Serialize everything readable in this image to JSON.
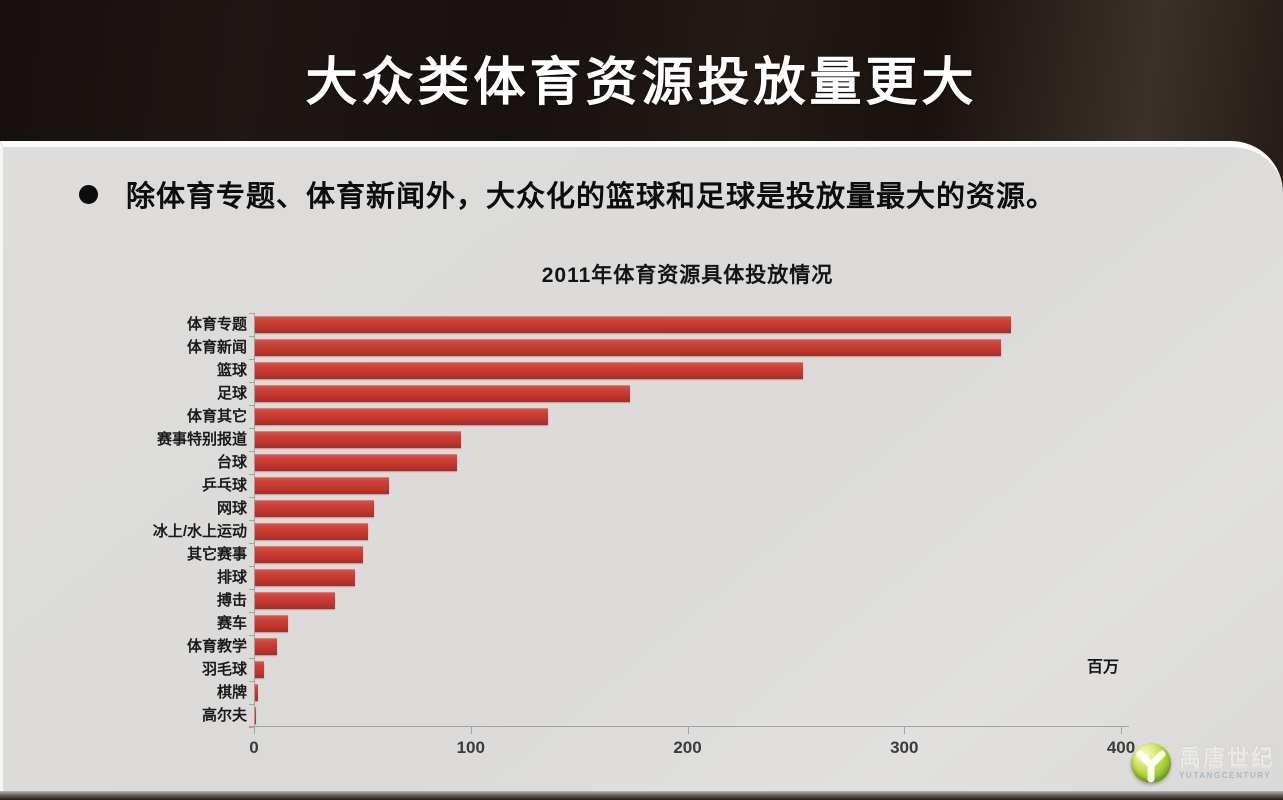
{
  "slide": {
    "header_title": "大众类体育资源投放量更大",
    "bullet_text": "除体育专题、体育新闻外，大众化的篮球和足球是投放量最大的资源。"
  },
  "chart_data": {
    "type": "bar",
    "orientation": "horizontal",
    "title": "2011年体育资源具体投放情况",
    "unit_label": "百万",
    "categories": [
      "体育专题",
      "体育新闻",
      "篮球",
      "足球",
      "体育其它",
      "赛事特别报道",
      "台球",
      "乒乓球",
      "网球",
      "冰上/水上运动",
      "其它赛事",
      "排球",
      "搏击",
      "赛车",
      "体育教学",
      "羽毛球",
      "棋牌",
      "高尔夫"
    ],
    "values": [
      349,
      344,
      253,
      173,
      135,
      95,
      93,
      62,
      55,
      52,
      50,
      46,
      37,
      15,
      10,
      4,
      1.5,
      0.5
    ],
    "x_ticks": [
      0,
      100,
      200,
      300,
      400
    ],
    "xlim": [
      0,
      400
    ],
    "grid": false,
    "legend": "none",
    "bar_color": "#c23a32"
  },
  "logo": {
    "name_cn": "禹唐世纪",
    "name_en": "YUTANGCENTURY"
  },
  "colors": {
    "header_bg": "#1d1512",
    "panel_bg": "#dcdbd9",
    "bar_red": "#c23a32",
    "axis_gray": "#a3a3a3",
    "title_text": "#ffffff"
  }
}
